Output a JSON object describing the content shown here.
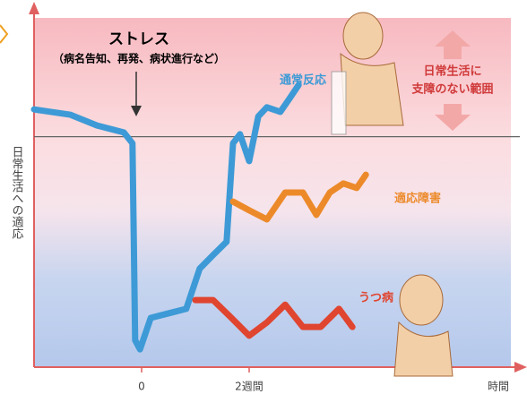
{
  "chart_data": {
    "type": "line",
    "title": "ストレス",
    "subtitle": "（病名告知、再発、病状進行など）",
    "annotations": [
      "日常生活に",
      "支障のない範囲"
    ],
    "y_label": "日常生活への適応",
    "x_label": "時間",
    "xlim": [
      -2,
      6.8
    ],
    "ylim": [
      0,
      100
    ],
    "xticks": [
      0,
      {
        "value": 2,
        "label": "2週間"
      }
    ],
    "threshold": 66,
    "series": [
      {
        "name": "通常反応",
        "color": "#3d9ad6",
        "x": [
          -2,
          -1.33,
          -0.83,
          -0.33,
          -0.17,
          -0.12,
          -0.03,
          0.17,
          0.5,
          0.83,
          1.08,
          1.33,
          1.58,
          1.7,
          1.83,
          2,
          2.17,
          2.33,
          2.58,
          2.75,
          2.92
        ],
        "values": [
          73.8,
          72.3,
          69.2,
          67.2,
          64.1,
          7.7,
          5.1,
          14.1,
          15.4,
          16.7,
          28.2,
          32.1,
          35.9,
          64.1,
          66.7,
          59,
          71.8,
          74.4,
          73.1,
          76.9,
          80.8
        ]
      },
      {
        "name": "適応障害",
        "color": "#ec8a2a",
        "x": [
          1.7,
          2,
          2.33,
          2.67,
          3,
          3.25,
          3.5,
          3.75,
          4,
          4.17
        ],
        "values": [
          47.4,
          44.9,
          42.3,
          50,
          50,
          43.6,
          50,
          52.6,
          51.3,
          55.1
        ]
      },
      {
        "name": "うつ病",
        "color": "#e0452f",
        "x": [
          1,
          1.33,
          1.67,
          2,
          2.33,
          2.67,
          3,
          3.33,
          3.67,
          3.92
        ],
        "values": [
          19.2,
          19.2,
          14.1,
          9,
          12.8,
          17.9,
          11.5,
          11.5,
          16.7,
          11.5
        ]
      }
    ]
  }
}
